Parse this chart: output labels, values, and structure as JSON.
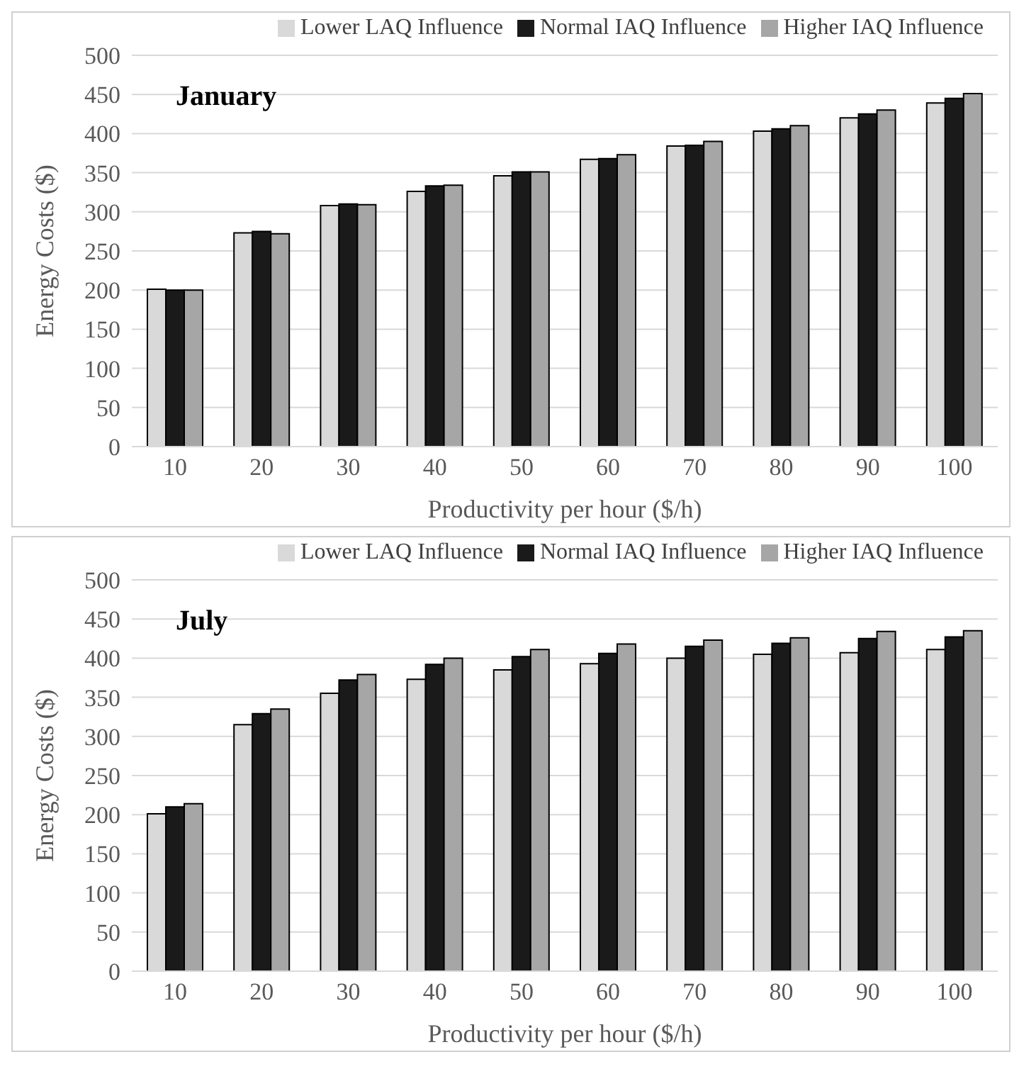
{
  "chart_data": [
    {
      "type": "bar",
      "xlabel": "Productivity per hour ($/h)",
      "ylabel": "Energy Costs ($)",
      "annotations": [
        "January"
      ],
      "categories": [
        "10",
        "20",
        "30",
        "40",
        "50",
        "60",
        "70",
        "80",
        "90",
        "100"
      ],
      "series": [
        {
          "name": "Lower LAQ Influence",
          "color": "#d9d9d9",
          "values": [
            201,
            273,
            308,
            326,
            346,
            367,
            384,
            403,
            420,
            439
          ]
        },
        {
          "name": "Normal IAQ Influence",
          "color": "#1a1a1a",
          "values": [
            200,
            275,
            310,
            333,
            351,
            368,
            385,
            406,
            425,
            445
          ]
        },
        {
          "name": "Higher IAQ Influence",
          "color": "#a6a6a6",
          "values": [
            200,
            272,
            309,
            334,
            351,
            373,
            390,
            410,
            430,
            451
          ]
        }
      ],
      "ylim": [
        0,
        500
      ],
      "yticks": [
        0,
        50,
        100,
        150,
        200,
        250,
        300,
        350,
        400,
        450,
        500
      ],
      "grid": "y",
      "legend": "top"
    },
    {
      "type": "bar",
      "xlabel": "Productivity per hour ($/h)",
      "ylabel": "Energy Costs ($)",
      "annotations": [
        "July"
      ],
      "categories": [
        "10",
        "20",
        "30",
        "40",
        "50",
        "60",
        "70",
        "80",
        "90",
        "100"
      ],
      "series": [
        {
          "name": "Lower LAQ Influence",
          "color": "#d9d9d9",
          "values": [
            201,
            315,
            355,
            373,
            385,
            393,
            400,
            405,
            407,
            411
          ]
        },
        {
          "name": "Normal IAQ Influence",
          "color": "#1a1a1a",
          "values": [
            210,
            329,
            372,
            392,
            402,
            406,
            415,
            419,
            425,
            427
          ]
        },
        {
          "name": "Higher IAQ Influence",
          "color": "#a6a6a6",
          "values": [
            214,
            335,
            379,
            400,
            411,
            418,
            423,
            426,
            434,
            435
          ]
        }
      ],
      "ylim": [
        0,
        500
      ],
      "yticks": [
        0,
        50,
        100,
        150,
        200,
        250,
        300,
        350,
        400,
        450,
        500
      ],
      "grid": "y",
      "legend": "top"
    }
  ]
}
